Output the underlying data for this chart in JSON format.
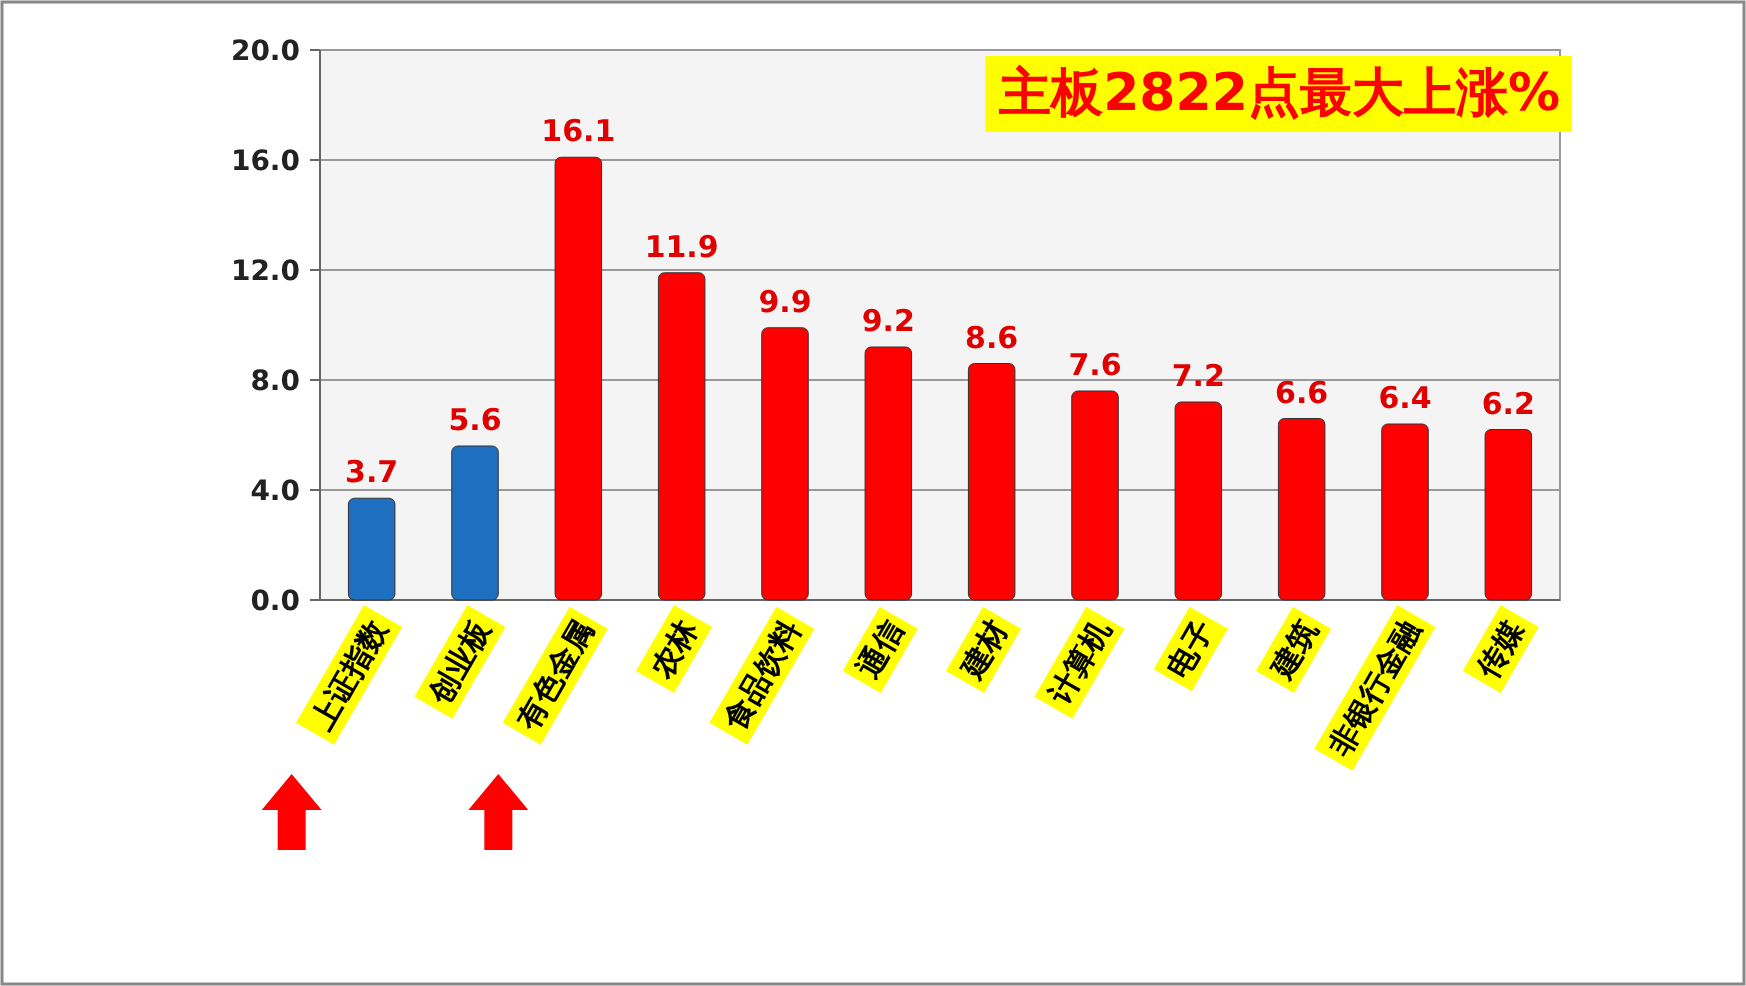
{
  "chart_data": {
    "type": "bar",
    "title": "主板2822点最大上涨%",
    "categories": [
      "上证指数",
      "创业板",
      "有色金属",
      "农林",
      "食品饮料",
      "通信",
      "建材",
      "计算机",
      "电子",
      "建筑",
      "非银行金融",
      "传媒"
    ],
    "values": [
      3.7,
      5.6,
      16.1,
      11.9,
      9.9,
      9.2,
      8.6,
      7.6,
      7.2,
      6.6,
      6.4,
      6.2
    ],
    "colors": [
      "#1f6fc0",
      "#1f6fc0",
      "#ff0000",
      "#ff0000",
      "#ff0000",
      "#ff0000",
      "#ff0000",
      "#ff0000",
      "#ff0000",
      "#ff0000",
      "#ff0000",
      "#ff0000"
    ],
    "ylim": [
      0,
      20
    ],
    "yticks": [
      {
        "value": 0,
        "label": "0.0"
      },
      {
        "value": 4,
        "label": "4.0"
      },
      {
        "value": 8,
        "label": "8.0"
      },
      {
        "value": 12,
        "label": "12.0"
      },
      {
        "value": 16,
        "label": "16.0"
      },
      {
        "value": 20,
        "label": "20.0"
      }
    ],
    "grid": "y",
    "data_labels": true
  }
}
